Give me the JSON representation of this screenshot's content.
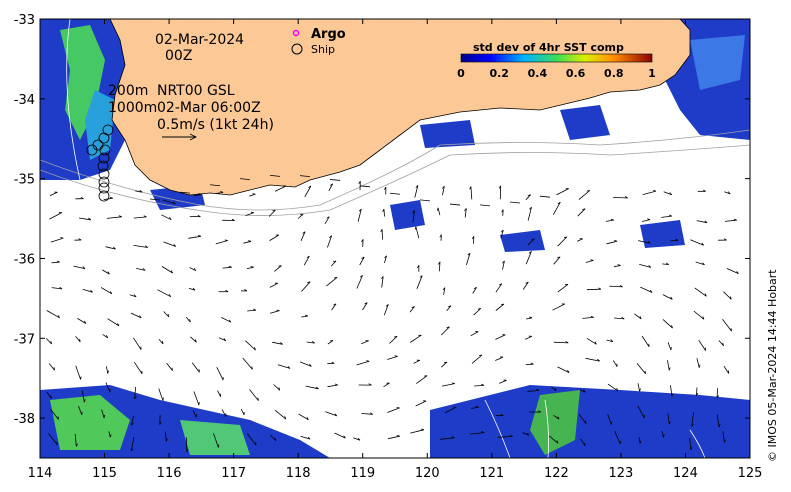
{
  "date_label": "02-Mar-2024",
  "time_label": "00Z",
  "depth_labels": [
    "200m",
    "1000m"
  ],
  "product_label": "NRT00 GSL",
  "product_time": "02-Mar 06:00Z",
  "scale_label": "0.5m/s (1kt 24h)",
  "legend": {
    "argo": "Argo",
    "ship": "Ship",
    "argo_color": "#ff00ff"
  },
  "colorbar": {
    "title": "std dev of 4hr SST comp",
    "ticks": [
      "0",
      "0.2",
      "0.4",
      "0.6",
      "0.8",
      "1"
    ],
    "range": [
      0,
      1
    ]
  },
  "axes": {
    "x_ticks": [
      "114",
      "115",
      "116",
      "117",
      "118",
      "119",
      "120",
      "121",
      "122",
      "123",
      "124",
      "125"
    ],
    "y_ticks": [
      "-33",
      "-34",
      "-35",
      "-36",
      "-37",
      "-38"
    ],
    "lon_range": [
      114,
      125
    ],
    "lat_range": [
      -38.5,
      -33
    ]
  },
  "credit": "© IMOS 05-Mar-2024 14:44 Hobart",
  "colors": {
    "land": "#fcc896",
    "ocean_nodata": "#ffffff",
    "high": "#1e32b4",
    "low": "#00006e"
  }
}
